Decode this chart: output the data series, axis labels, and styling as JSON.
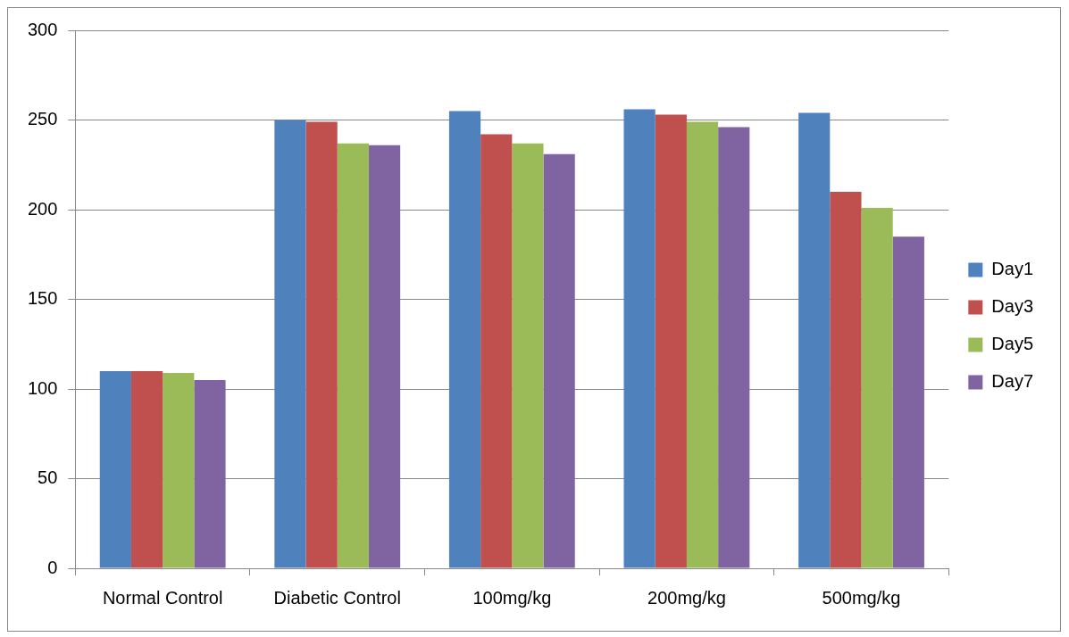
{
  "chart_data": {
    "type": "bar",
    "categories": [
      "Normal Control",
      "Diabetic Control",
      "100mg/kg",
      "200mg/kg",
      "500mg/kg"
    ],
    "series": [
      {
        "name": "Day1",
        "color": "#4f81bd",
        "values": [
          110,
          250,
          255,
          256,
          254
        ]
      },
      {
        "name": "Day3",
        "color": "#c0504d",
        "values": [
          110,
          249,
          242,
          253,
          210
        ]
      },
      {
        "name": "Day5",
        "color": "#9bbb59",
        "values": [
          109,
          237,
          237,
          249,
          201
        ]
      },
      {
        "name": "Day7",
        "color": "#8064a2",
        "values": [
          105,
          236,
          231,
          246,
          185
        ]
      }
    ],
    "ylim": [
      0,
      300
    ],
    "yticks": [
      0,
      50,
      100,
      150,
      200,
      250,
      300
    ],
    "grid": "y",
    "legend": "right"
  }
}
